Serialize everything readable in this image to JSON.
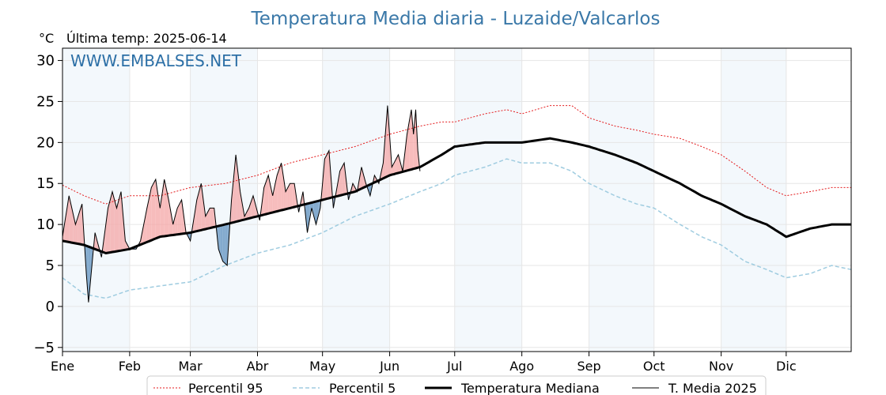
{
  "chart_data": {
    "type": "line",
    "title": "Temperatura Media diaria - Luzaide/Valcarlos",
    "unit_label": "°C",
    "last_temp_label": "Última temp: 2025-06-14",
    "watermark": "WWW.EMBALSES.NET",
    "ylim": [
      -5.5,
      31.5
    ],
    "yticks": [
      {
        "v": 30,
        "label": "30"
      },
      {
        "v": 25,
        "label": "25"
      },
      {
        "v": 20,
        "label": "20"
      },
      {
        "v": 15,
        "label": "15"
      },
      {
        "v": 10,
        "label": "10"
      },
      {
        "v": 5,
        "label": "5"
      },
      {
        "v": 0,
        "label": "0"
      },
      {
        "v": -5,
        "label": "−5"
      }
    ],
    "months": [
      {
        "label": "Ene",
        "start": 0
      },
      {
        "label": "Feb",
        "start": 31
      },
      {
        "label": "Mar",
        "start": 59
      },
      {
        "label": "Abr",
        "start": 90
      },
      {
        "label": "May",
        "start": 120
      },
      {
        "label": "Jun",
        "start": 151
      },
      {
        "label": "Jul",
        "start": 181
      },
      {
        "label": "Ago",
        "start": 212
      },
      {
        "label": "Sep",
        "start": 243
      },
      {
        "label": "Oct",
        "start": 273
      },
      {
        "label": "Nov",
        "start": 304
      },
      {
        "label": "Dic",
        "start": 334
      }
    ],
    "days_in_year": 365,
    "grid": true,
    "legend_position": "bottom",
    "series": [
      {
        "name": "Percentil 95",
        "style": "dotted",
        "color": "#e41a1c",
        "keypoints": [
          [
            0,
            14.8
          ],
          [
            10,
            13.5
          ],
          [
            20,
            12.5
          ],
          [
            31,
            13.5
          ],
          [
            45,
            13.5
          ],
          [
            59,
            14.5
          ],
          [
            75,
            15.0
          ],
          [
            90,
            16.0
          ],
          [
            105,
            17.5
          ],
          [
            120,
            18.5
          ],
          [
            135,
            19.5
          ],
          [
            151,
            21.0
          ],
          [
            165,
            22.0
          ],
          [
            175,
            22.5
          ],
          [
            181,
            22.5
          ],
          [
            195,
            23.5
          ],
          [
            205,
            24.0
          ],
          [
            212,
            23.5
          ],
          [
            225,
            24.5
          ],
          [
            235,
            24.5
          ],
          [
            243,
            23.0
          ],
          [
            255,
            22.0
          ],
          [
            265,
            21.5
          ],
          [
            273,
            21.0
          ],
          [
            285,
            20.5
          ],
          [
            295,
            19.5
          ],
          [
            304,
            18.5
          ],
          [
            315,
            16.5
          ],
          [
            325,
            14.5
          ],
          [
            334,
            13.5
          ],
          [
            345,
            14.0
          ],
          [
            355,
            14.5
          ],
          [
            364,
            14.5
          ]
        ]
      },
      {
        "name": "Percentil 5",
        "style": "dashed",
        "color": "#9fcce0",
        "keypoints": [
          [
            0,
            3.5
          ],
          [
            10,
            1.5
          ],
          [
            20,
            1.0
          ],
          [
            31,
            2.0
          ],
          [
            45,
            2.5
          ],
          [
            59,
            3.0
          ],
          [
            75,
            5.0
          ],
          [
            90,
            6.5
          ],
          [
            105,
            7.5
          ],
          [
            120,
            9.0
          ],
          [
            135,
            11.0
          ],
          [
            151,
            12.5
          ],
          [
            165,
            14.0
          ],
          [
            175,
            15.0
          ],
          [
            181,
            16.0
          ],
          [
            195,
            17.0
          ],
          [
            205,
            18.0
          ],
          [
            212,
            17.5
          ],
          [
            225,
            17.5
          ],
          [
            235,
            16.5
          ],
          [
            243,
            15.0
          ],
          [
            255,
            13.5
          ],
          [
            265,
            12.5
          ],
          [
            273,
            12.0
          ],
          [
            285,
            10.0
          ],
          [
            295,
            8.5
          ],
          [
            304,
            7.5
          ],
          [
            315,
            5.5
          ],
          [
            325,
            4.5
          ],
          [
            334,
            3.5
          ],
          [
            345,
            4.0
          ],
          [
            355,
            5.0
          ],
          [
            364,
            4.5
          ]
        ]
      },
      {
        "name": "Temperatura Mediana",
        "style": "solid-thick",
        "color": "#000000",
        "keypoints": [
          [
            0,
            8.0
          ],
          [
            10,
            7.5
          ],
          [
            20,
            6.5
          ],
          [
            31,
            7.0
          ],
          [
            45,
            8.5
          ],
          [
            59,
            9.0
          ],
          [
            75,
            10.0
          ],
          [
            90,
            11.0
          ],
          [
            105,
            12.0
          ],
          [
            120,
            13.0
          ],
          [
            135,
            14.0
          ],
          [
            151,
            16.0
          ],
          [
            165,
            17.0
          ],
          [
            175,
            18.5
          ],
          [
            181,
            19.5
          ],
          [
            195,
            20.0
          ],
          [
            205,
            20.0
          ],
          [
            212,
            20.0
          ],
          [
            225,
            20.5
          ],
          [
            235,
            20.0
          ],
          [
            243,
            19.5
          ],
          [
            255,
            18.5
          ],
          [
            265,
            17.5
          ],
          [
            273,
            16.5
          ],
          [
            285,
            15.0
          ],
          [
            295,
            13.5
          ],
          [
            304,
            12.5
          ],
          [
            315,
            11.0
          ],
          [
            325,
            10.0
          ],
          [
            334,
            8.5
          ],
          [
            345,
            9.5
          ],
          [
            355,
            10.0
          ],
          [
            364,
            10.0
          ]
        ]
      },
      {
        "name": "T. Media 2025",
        "style": "solid-thin",
        "color": "#000000",
        "keypoints": [
          [
            0,
            8.5
          ],
          [
            3,
            13.5
          ],
          [
            6,
            10.0
          ],
          [
            9,
            12.5
          ],
          [
            11,
            4.0
          ],
          [
            12,
            0.5
          ],
          [
            15,
            9.0
          ],
          [
            18,
            6.0
          ],
          [
            21,
            12.0
          ],
          [
            23,
            14.0
          ],
          [
            25,
            12.0
          ],
          [
            27,
            14.0
          ],
          [
            29,
            8.0
          ],
          [
            31,
            7.0
          ],
          [
            34,
            7.0
          ],
          [
            36,
            8.0
          ],
          [
            39,
            12.0
          ],
          [
            41,
            14.5
          ],
          [
            43,
            15.5
          ],
          [
            45,
            12.0
          ],
          [
            47,
            15.5
          ],
          [
            49,
            13.0
          ],
          [
            51,
            10.0
          ],
          [
            53,
            12.0
          ],
          [
            55,
            13.0
          ],
          [
            57,
            9.0
          ],
          [
            59,
            8.0
          ],
          [
            62,
            13.0
          ],
          [
            64,
            15.0
          ],
          [
            66,
            11.0
          ],
          [
            68,
            12.0
          ],
          [
            70,
            12.0
          ],
          [
            72,
            7.0
          ],
          [
            74,
            5.5
          ],
          [
            76,
            5.0
          ],
          [
            78,
            13.0
          ],
          [
            80,
            18.5
          ],
          [
            82,
            14.0
          ],
          [
            84,
            11.0
          ],
          [
            86,
            12.0
          ],
          [
            88,
            13.5
          ],
          [
            91,
            10.5
          ],
          [
            93,
            14.5
          ],
          [
            95,
            16.0
          ],
          [
            97,
            13.5
          ],
          [
            99,
            16.0
          ],
          [
            101,
            17.5
          ],
          [
            103,
            14.0
          ],
          [
            105,
            15.0
          ],
          [
            107,
            15.0
          ],
          [
            109,
            11.5
          ],
          [
            111,
            14.0
          ],
          [
            113,
            9.0
          ],
          [
            115,
            12.0
          ],
          [
            117,
            10.0
          ],
          [
            119,
            12.0
          ],
          [
            121,
            18.0
          ],
          [
            123,
            19.0
          ],
          [
            125,
            12.0
          ],
          [
            128,
            16.5
          ],
          [
            130,
            17.5
          ],
          [
            132,
            13.0
          ],
          [
            134,
            15.0
          ],
          [
            136,
            14.0
          ],
          [
            138,
            17.0
          ],
          [
            140,
            15.0
          ],
          [
            142,
            13.5
          ],
          [
            144,
            16.0
          ],
          [
            146,
            15.0
          ],
          [
            148,
            17.5
          ],
          [
            150,
            24.5
          ],
          [
            152,
            17.0
          ],
          [
            155,
            18.5
          ],
          [
            157,
            16.5
          ],
          [
            159,
            21.0
          ],
          [
            161,
            24.0
          ],
          [
            162,
            21.0
          ],
          [
            163,
            24.0
          ],
          [
            164,
            19.0
          ],
          [
            165,
            16.5
          ]
        ]
      }
    ]
  }
}
